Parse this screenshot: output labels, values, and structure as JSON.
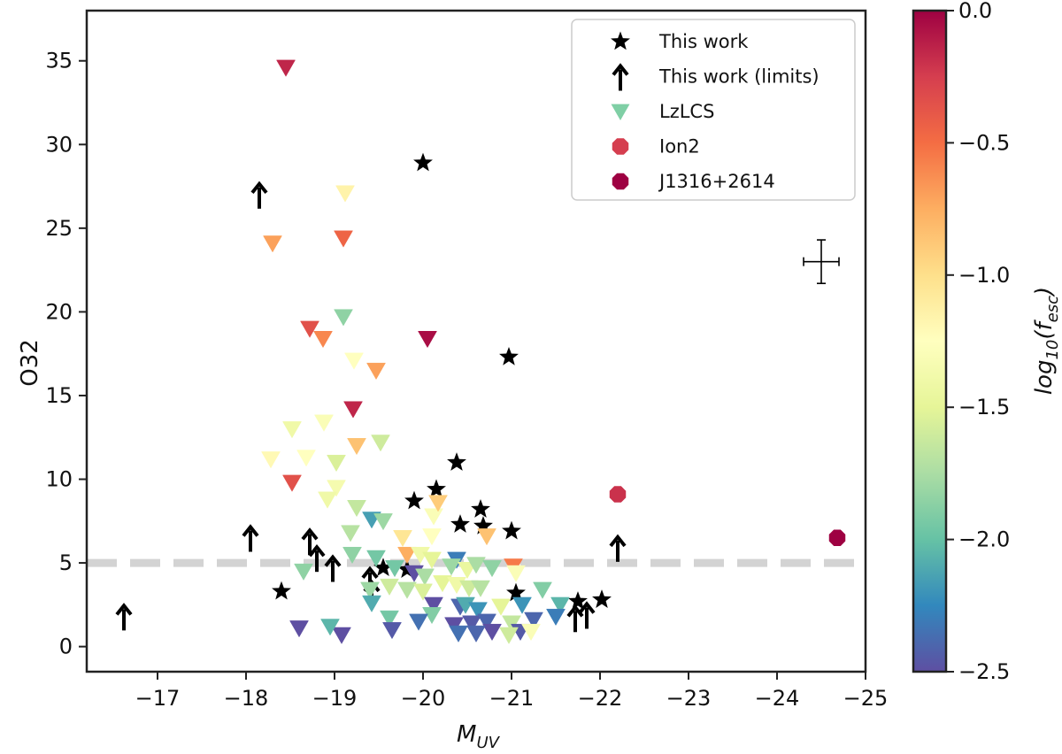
{
  "chart_data": {
    "type": "scatter",
    "xlabel_main": "M",
    "xlabel_sub": "UV",
    "ylabel": "O32",
    "xlim": [
      -16.2,
      -25.0
    ],
    "ylim": [
      -1.5,
      38.0
    ],
    "grid": false,
    "x_ticks": [
      -17,
      -18,
      -19,
      -20,
      -21,
      -22,
      -23,
      -24,
      -25
    ],
    "y_ticks": [
      0,
      5,
      10,
      15,
      20,
      25,
      30,
      35
    ],
    "reference_line": {
      "y": 5,
      "style": "dashed",
      "color": "#d3d3d3"
    },
    "colorbar": {
      "label_main": "log",
      "label_sub": "10",
      "label_arg": "(f",
      "label_arg_sub": "esc",
      "label_close": ")",
      "min": -2.5,
      "max": 0.0,
      "ticks": [
        0.0,
        -0.5,
        -1.0,
        -1.5,
        -2.0,
        -2.5
      ],
      "tick_labels": [
        "0.0",
        "−0.5",
        "−1.0",
        "−1.5",
        "−2.0",
        "−2.5"
      ],
      "colormap": "Spectral"
    },
    "legend": {
      "position": "top-right",
      "entries": [
        {
          "label": "This work",
          "marker": "star",
          "color": "#000000"
        },
        {
          "label": "This work (limits)",
          "marker": "up-arrow",
          "color": "#000000"
        },
        {
          "label": "LzLCS",
          "marker": "down-triangle",
          "color": "#7fcfa5"
        },
        {
          "label": "Ion2",
          "marker": "octagon",
          "color": "#d53e4f"
        },
        {
          "label": "J1316+2614",
          "marker": "octagon",
          "color": "#9e0142"
        }
      ]
    },
    "representative_error": {
      "x": -24.5,
      "y": 23.0,
      "xerr": 0.2,
      "yerr": 1.3
    },
    "series": [
      {
        "name": "This work",
        "marker": "star",
        "points": [
          [
            -20.0,
            28.9
          ],
          [
            -20.97,
            17.3
          ],
          [
            -20.38,
            11.0
          ],
          [
            -20.15,
            9.4
          ],
          [
            -19.9,
            8.7
          ],
          [
            -20.65,
            8.2
          ],
          [
            -20.42,
            7.3
          ],
          [
            -20.68,
            7.2
          ],
          [
            -21.0,
            6.9
          ],
          [
            -19.55,
            4.7
          ],
          [
            -19.82,
            4.6
          ],
          [
            -18.4,
            3.3
          ],
          [
            -21.05,
            3.2
          ],
          [
            -21.75,
            2.7
          ],
          [
            -22.02,
            2.8
          ]
        ]
      },
      {
        "name": "This work (limits)",
        "marker": "up-arrow",
        "points": [
          [
            -18.15,
            26.8
          ],
          [
            -16.62,
            1.6
          ],
          [
            -18.05,
            6.3
          ],
          [
            -18.72,
            6.1
          ],
          [
            -18.8,
            5.1
          ],
          [
            -18.98,
            4.5
          ],
          [
            -19.4,
            3.8
          ],
          [
            -19.42,
            3.0
          ],
          [
            -21.72,
            1.5
          ],
          [
            -21.85,
            1.7
          ],
          [
            -22.2,
            5.7
          ]
        ]
      },
      {
        "name": "LzLCS",
        "marker": "down-triangle",
        "points": [
          [
            -18.45,
            34.6,
            -0.15
          ],
          [
            -19.12,
            27.1,
            -1.15
          ],
          [
            -18.3,
            24.1,
            -0.7
          ],
          [
            -19.1,
            24.4,
            -0.45
          ],
          [
            -19.1,
            19.7,
            -1.85
          ],
          [
            -18.72,
            19.0,
            -0.35
          ],
          [
            -18.87,
            18.4,
            -0.6
          ],
          [
            -20.05,
            18.4,
            -0.05
          ],
          [
            -19.22,
            17.1,
            -1.25
          ],
          [
            -19.47,
            16.5,
            -0.7
          ],
          [
            -19.21,
            14.2,
            -0.15
          ],
          [
            -18.52,
            13.0,
            -1.4
          ],
          [
            -18.88,
            13.4,
            -1.3
          ],
          [
            -19.25,
            12.0,
            -0.85
          ],
          [
            -19.52,
            12.2,
            -1.6
          ],
          [
            -18.28,
            11.2,
            -1.2
          ],
          [
            -18.68,
            11.3,
            -1.25
          ],
          [
            -19.02,
            11.0,
            -1.55
          ],
          [
            -18.52,
            9.8,
            -0.35
          ],
          [
            -19.02,
            9.5,
            -1.35
          ],
          [
            -18.92,
            8.8,
            -1.4
          ],
          [
            -19.25,
            8.3,
            -1.65
          ],
          [
            -19.42,
            7.6,
            -2.15
          ],
          [
            -19.18,
            6.8,
            -1.7
          ],
          [
            -19.55,
            7.5,
            -1.8
          ],
          [
            -19.77,
            6.5,
            -1.05
          ],
          [
            -20.12,
            7.8,
            -1.3
          ],
          [
            -20.17,
            8.6,
            -0.9
          ],
          [
            -20.1,
            6.6,
            -1.25
          ],
          [
            -20.72,
            6.6,
            -0.85
          ],
          [
            -19.2,
            5.5,
            -1.85
          ],
          [
            -19.47,
            5.3,
            -1.95
          ],
          [
            -19.82,
            5.5,
            -0.75
          ],
          [
            -19.97,
            5.5,
            -1.4
          ],
          [
            -20.1,
            5.2,
            -1.5
          ],
          [
            -20.38,
            5.2,
            -2.3
          ],
          [
            -19.68,
            4.7,
            -1.95
          ],
          [
            -19.9,
            4.4,
            -2.5
          ],
          [
            -20.02,
            4.2,
            -1.75
          ],
          [
            -20.32,
            4.8,
            -1.8
          ],
          [
            -20.5,
            4.6,
            -1.45
          ],
          [
            -20.6,
            4.9,
            -1.75
          ],
          [
            -20.78,
            4.7,
            -1.85
          ],
          [
            -21.02,
            4.8,
            -0.55
          ],
          [
            -21.05,
            4.4,
            -1.3
          ],
          [
            -18.65,
            4.5,
            -1.85
          ],
          [
            -19.4,
            3.4,
            -1.8
          ],
          [
            -19.62,
            3.6,
            -1.6
          ],
          [
            -19.82,
            3.4,
            -1.7
          ],
          [
            -20.0,
            3.3,
            -1.55
          ],
          [
            -20.22,
            3.8,
            -1.5
          ],
          [
            -20.38,
            3.7,
            -1.4
          ],
          [
            -20.52,
            3.5,
            -1.6
          ],
          [
            -20.65,
            3.5,
            -1.7
          ],
          [
            -21.35,
            3.4,
            -1.9
          ],
          [
            -20.12,
            2.5,
            -2.5
          ],
          [
            -20.42,
            2.4,
            -2.4
          ],
          [
            -20.48,
            2.5,
            -2.1
          ],
          [
            -20.62,
            2.2,
            -2.2
          ],
          [
            -20.88,
            2.4,
            -1.5
          ],
          [
            -21.12,
            2.5,
            -2.2
          ],
          [
            -21.55,
            2.5,
            -2.05
          ],
          [
            -19.42,
            2.6,
            -2.1
          ],
          [
            -20.1,
            1.9,
            -1.9
          ],
          [
            -19.95,
            1.5,
            -2.35
          ],
          [
            -20.35,
            1.3,
            -2.5
          ],
          [
            -20.55,
            1.4,
            -2.45
          ],
          [
            -20.72,
            1.5,
            -2.4
          ],
          [
            -20.78,
            0.9,
            -2.5
          ],
          [
            -21.0,
            1.4,
            -1.65
          ],
          [
            -21.1,
            0.9,
            -2.45
          ],
          [
            -21.25,
            1.6,
            -2.4
          ],
          [
            -21.5,
            1.8,
            -2.3
          ],
          [
            -20.97,
            0.7,
            -1.6
          ],
          [
            -21.22,
            0.9,
            -1.3
          ],
          [
            -19.62,
            1.7,
            -1.95
          ],
          [
            -19.65,
            1.0,
            -2.45
          ],
          [
            -18.6,
            1.1,
            -2.5
          ],
          [
            -19.08,
            0.7,
            -2.5
          ],
          [
            -18.95,
            1.2,
            -2.05
          ],
          [
            -20.4,
            0.8,
            -2.35
          ],
          [
            -20.6,
            0.8,
            -2.4
          ]
        ]
      },
      {
        "name": "Ion2",
        "marker": "octagon",
        "points": [
          [
            -22.2,
            9.1,
            -0.2
          ]
        ]
      },
      {
        "name": "J1316+2614",
        "marker": "octagon",
        "points": [
          [
            -24.68,
            6.5,
            0.0
          ]
        ]
      }
    ]
  }
}
